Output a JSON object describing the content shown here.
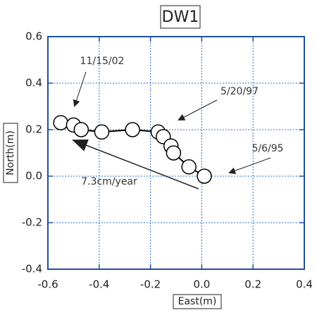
{
  "chart_data": {
    "type": "line",
    "title": "DW1",
    "x_label": "East(m)",
    "y_label": "North(m)",
    "x": [
      -0.55,
      -0.5,
      -0.47,
      -0.39,
      -0.27,
      -0.17,
      -0.15,
      -0.12,
      -0.11,
      -0.05,
      0.01
    ],
    "values": [
      0.23,
      0.22,
      0.2,
      0.19,
      0.2,
      0.19,
      0.17,
      0.13,
      0.1,
      0.04,
      0.0
    ],
    "color": "#000000",
    "xlim": [
      -0.6,
      0.4
    ],
    "xticks": [
      -0.6,
      -0.4,
      -0.2,
      {
        "value": 0,
        "label": "0.0"
      },
      0.2,
      0.4
    ],
    "ylim": [
      -0.4,
      0.6
    ],
    "yticks": [
      -0.4,
      -0.2,
      {
        "value": 0,
        "label": "0.0"
      },
      0.2,
      0.4,
      0.6
    ],
    "grid": true,
    "annotations": [
      "11/15/02",
      "5/20/97",
      "5/6/95",
      "7.3cm/year"
    ]
  }
}
